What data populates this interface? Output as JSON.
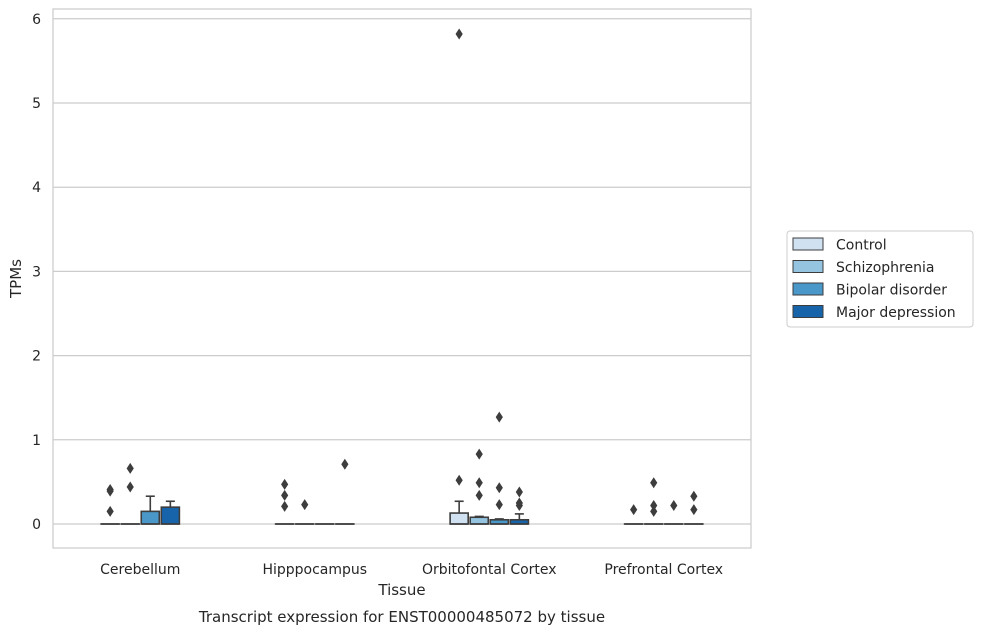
{
  "chart_data": {
    "type": "box",
    "title": "",
    "caption": "Transcript expression for ENST00000485072 by tissue",
    "xlabel": "Tissue",
    "ylabel": "TPMs",
    "ylim": [
      -0.28,
      6.12
    ],
    "yticks": [
      0,
      1,
      2,
      3,
      4,
      5,
      6
    ],
    "grid": "horizontal",
    "legend_position": "right",
    "categories": [
      "Cerebellum",
      "Hipppocampus",
      "Orbitofontal Cortex",
      "Prefrontal Cortex"
    ],
    "series": [
      {
        "name": "Control",
        "color": "#d0e1f2",
        "boxes": [
          {
            "q1": 0,
            "median": 0,
            "q3": 0,
            "whisker_low": 0,
            "whisker_high": 0,
            "outliers": [
              0.15,
              0.39,
              0.41
            ]
          },
          {
            "q1": 0,
            "median": 0,
            "q3": 0,
            "whisker_low": 0,
            "whisker_high": 0,
            "outliers": [
              0.21,
              0.34,
              0.47
            ]
          },
          {
            "q1": 0,
            "median": 0,
            "q3": 0.13,
            "whisker_low": 0,
            "whisker_high": 0.27,
            "outliers": [
              0.52,
              5.82
            ]
          },
          {
            "q1": 0,
            "median": 0,
            "q3": 0,
            "whisker_low": 0,
            "whisker_high": 0,
            "outliers": [
              0.17
            ]
          }
        ]
      },
      {
        "name": "Schizophrenia",
        "color": "#94c4df",
        "boxes": [
          {
            "q1": 0,
            "median": 0,
            "q3": 0,
            "whisker_low": 0,
            "whisker_high": 0,
            "outliers": [
              0.44,
              0.66
            ]
          },
          {
            "q1": 0,
            "median": 0,
            "q3": 0,
            "whisker_low": 0,
            "whisker_high": 0,
            "outliers": [
              0.23
            ]
          },
          {
            "q1": 0,
            "median": 0,
            "q3": 0.08,
            "whisker_low": 0,
            "whisker_high": 0.09,
            "outliers": [
              0.34,
              0.49,
              0.83
            ]
          },
          {
            "q1": 0,
            "median": 0,
            "q3": 0,
            "whisker_low": 0,
            "whisker_high": 0,
            "outliers": [
              0.15,
              0.22,
              0.49
            ]
          }
        ]
      },
      {
        "name": "Bipolar disorder",
        "color": "#4a98c9",
        "boxes": [
          {
            "q1": 0,
            "median": 0,
            "q3": 0.15,
            "whisker_low": 0,
            "whisker_high": 0.33,
            "outliers": []
          },
          {
            "q1": 0,
            "median": 0,
            "q3": 0,
            "whisker_low": 0,
            "whisker_high": 0,
            "outliers": []
          },
          {
            "q1": 0,
            "median": 0,
            "q3": 0.05,
            "whisker_low": 0,
            "whisker_high": 0.06,
            "outliers": [
              0.23,
              0.43,
              1.27
            ]
          },
          {
            "q1": 0,
            "median": 0,
            "q3": 0,
            "whisker_low": 0,
            "whisker_high": 0,
            "outliers": [
              0.22
            ]
          }
        ]
      },
      {
        "name": "Major depression",
        "color": "#1764ab",
        "boxes": [
          {
            "q1": 0,
            "median": 0,
            "q3": 0.2,
            "whisker_low": 0,
            "whisker_high": 0.27,
            "outliers": []
          },
          {
            "q1": 0,
            "median": 0,
            "q3": 0,
            "whisker_low": 0,
            "whisker_high": 0,
            "outliers": [
              0.71
            ]
          },
          {
            "q1": 0,
            "median": 0,
            "q3": 0.05,
            "whisker_low": 0,
            "whisker_high": 0.12,
            "outliers": [
              0.22,
              0.25,
              0.38
            ]
          },
          {
            "q1": 0,
            "median": 0,
            "q3": 0,
            "whisker_low": 0,
            "whisker_high": 0,
            "outliers": [
              0.17,
              0.33
            ]
          }
        ]
      }
    ]
  }
}
